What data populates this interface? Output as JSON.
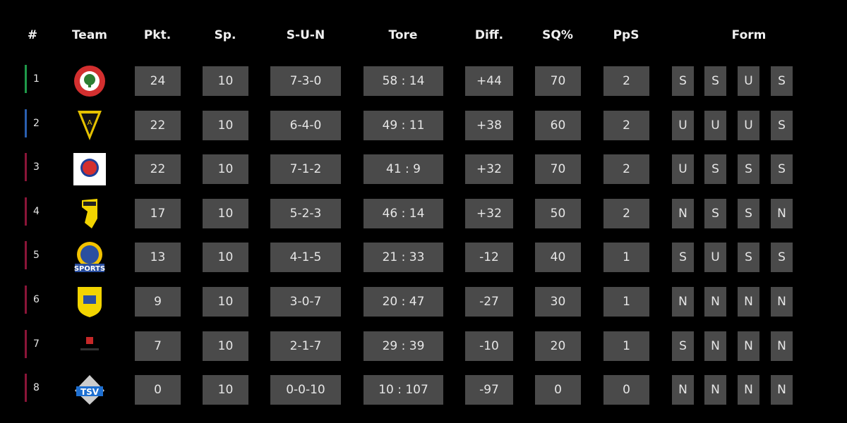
{
  "headers": {
    "rank": "#",
    "team": "Team",
    "points": "Pkt.",
    "games": "Sp.",
    "record": "S-U-N",
    "goals": "Tore",
    "diff": "Diff.",
    "win_pct": "SQ%",
    "pps": "PpS",
    "form": "Form"
  },
  "colors": {
    "box": "#4a4a4a",
    "green": "#1f9a4a",
    "blue": "#2a5fb0",
    "maroon": "#8a1538"
  },
  "rows": [
    {
      "rank": "1",
      "logo": "esc-logo",
      "bar": "green",
      "points": "24",
      "games": "10",
      "record": "7-3-0",
      "goals": "58 : 14",
      "diff": "+44",
      "win_pct": "70",
      "pps": "2",
      "form": [
        "S",
        "S",
        "U",
        "S"
      ]
    },
    {
      "rank": "2",
      "logo": "alemannia-logo",
      "bar": "blue",
      "points": "22",
      "games": "10",
      "record": "6-4-0",
      "goals": "49 : 11",
      "diff": "+38",
      "win_pct": "60",
      "pps": "2",
      "form": [
        "U",
        "U",
        "U",
        "S"
      ]
    },
    {
      "rank": "3",
      "logo": "wuppertal-logo",
      "bar": "maroon",
      "points": "22",
      "games": "10",
      "record": "7-1-2",
      "goals": "41 : 9",
      "diff": "+32",
      "win_pct": "70",
      "pps": "2",
      "form": [
        "U",
        "S",
        "S",
        "S"
      ]
    },
    {
      "rank": "4",
      "logo": "yellow-shield-logo",
      "bar": "maroon",
      "points": "17",
      "games": "10",
      "record": "5-2-3",
      "goals": "46 : 14",
      "diff": "+32",
      "win_pct": "50",
      "pps": "2",
      "form": [
        "N",
        "S",
        "S",
        "N"
      ]
    },
    {
      "rank": "5",
      "logo": "sports-logo",
      "bar": "maroon",
      "points": "13",
      "games": "10",
      "record": "4-1-5",
      "goals": "21 : 33",
      "diff": "-12",
      "win_pct": "40",
      "pps": "1",
      "form": [
        "S",
        "U",
        "S",
        "S"
      ]
    },
    {
      "rank": "6",
      "logo": "1fc-logo",
      "bar": "maroon",
      "points": "9",
      "games": "10",
      "record": "3-0-7",
      "goals": "20 : 47",
      "diff": "-27",
      "win_pct": "30",
      "pps": "1",
      "form": [
        "N",
        "N",
        "N",
        "N"
      ]
    },
    {
      "rank": "7",
      "logo": "leverkusen-esports-logo",
      "bar": "maroon",
      "points": "7",
      "games": "10",
      "record": "2-1-7",
      "goals": "29 : 39",
      "diff": "-10",
      "win_pct": "20",
      "pps": "1",
      "form": [
        "S",
        "N",
        "N",
        "N"
      ]
    },
    {
      "rank": "8",
      "logo": "tsv-logo",
      "bar": "maroon",
      "points": "0",
      "games": "10",
      "record": "0-0-10",
      "goals": "10 : 107",
      "diff": "-97",
      "win_pct": "0",
      "pps": "0",
      "form": [
        "N",
        "N",
        "N",
        "N"
      ]
    }
  ]
}
